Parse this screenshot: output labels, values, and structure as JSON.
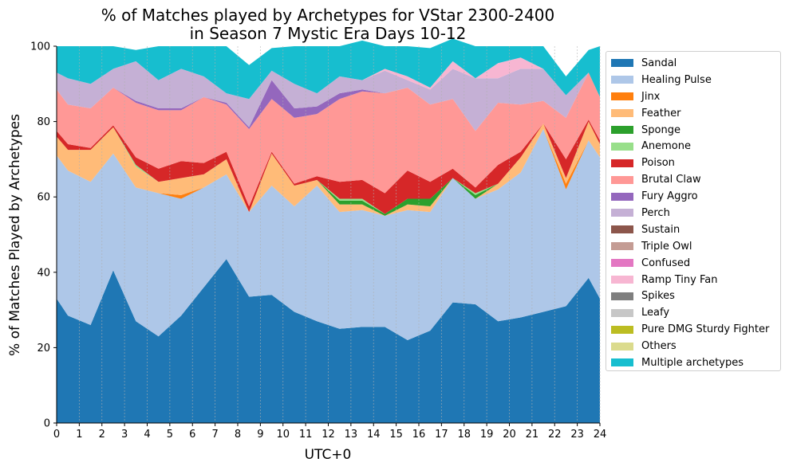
{
  "chart_data": {
    "type": "area",
    "title": "% of Matches played by Archetypes for VStar 2300-2400\nin Season 7 Mystic Era Days 10-12",
    "xlabel": "UTC+0",
    "ylabel": "% of Matches Played by Archetypes",
    "xlim": [
      0,
      24
    ],
    "ylim": [
      0,
      100
    ],
    "x_ticks": [
      "0",
      "1",
      "2",
      "3",
      "4",
      "5",
      "6",
      "7",
      "8",
      "9",
      "10",
      "11",
      "12",
      "13",
      "14",
      "15",
      "16",
      "17",
      "18",
      "19",
      "20",
      "21",
      "22",
      "23",
      "24"
    ],
    "y_ticks": [
      "0",
      "20",
      "40",
      "60",
      "80",
      "100"
    ],
    "grid": "vertical dashed",
    "legend_position": "outside right",
    "x": [
      0,
      0.5,
      1.5,
      2.5,
      3.5,
      4.5,
      5.5,
      6.5,
      7.5,
      8.5,
      9.5,
      10.5,
      11.5,
      12.5,
      13.5,
      14.5,
      15.5,
      16.5,
      17.5,
      18.5,
      19.5,
      20.5,
      21.5,
      22.5,
      23.5,
      24
    ],
    "series": [
      {
        "name": "Sandal",
        "color": "#1f77b4",
        "values": [
          33,
          28.5,
          26,
          40.5,
          27,
          23,
          28.5,
          36,
          43.5,
          33.5,
          34,
          29.5,
          27,
          25,
          25.5,
          25.5,
          22,
          24.5,
          32,
          31.5,
          27,
          28,
          29.5,
          31,
          38.5,
          33
        ]
      },
      {
        "name": "Healing Pulse",
        "color": "#aec7e8",
        "values": [
          38,
          38.5,
          38,
          31,
          35.5,
          38,
          31,
          26.5,
          22.5,
          22.5,
          29,
          28,
          36,
          31,
          31,
          29.5,
          34.5,
          31.5,
          33,
          28,
          35,
          38.5,
          48.5,
          31,
          36.5,
          37.5
        ]
      },
      {
        "name": "Jinx",
        "color": "#ff7f0e",
        "values": [
          0,
          0,
          0,
          0,
          0,
          0,
          1,
          0,
          0,
          0,
          0,
          0,
          0,
          0,
          0,
          0,
          0,
          0,
          0,
          0,
          0,
          0,
          0,
          1.5,
          0,
          0
        ]
      },
      {
        "name": "Feather",
        "color": "#ffbb78",
        "values": [
          5,
          5.5,
          8.5,
          7,
          5.5,
          3,
          4.5,
          3.5,
          4,
          0,
          8.5,
          5.5,
          1.5,
          2,
          1.5,
          0,
          1.5,
          1.5,
          0,
          0,
          1.5,
          4,
          1.5,
          1.5,
          5,
          3.5
        ]
      },
      {
        "name": "Sponge",
        "color": "#2ca02c",
        "values": [
          0,
          0,
          0,
          0,
          0,
          0,
          0,
          0,
          0,
          0,
          0,
          0,
          0,
          1,
          1,
          0.5,
          1.5,
          2,
          0,
          1,
          0,
          0,
          0,
          0,
          0,
          0
        ]
      },
      {
        "name": "Anemone",
        "color": "#98df8a",
        "values": [
          0,
          0,
          0,
          0,
          0.5,
          0,
          0,
          0,
          0,
          0,
          0,
          0,
          0,
          0.5,
          0.5,
          0,
          0,
          0,
          0,
          0.5,
          0,
          0,
          0,
          0,
          0,
          0
        ]
      },
      {
        "name": "Poison",
        "color": "#d62728",
        "values": [
          1.5,
          1.5,
          0.5,
          0.5,
          2,
          3.5,
          4.5,
          3,
          2,
          1.5,
          0.5,
          0.5,
          1,
          4.5,
          5,
          5.5,
          7.5,
          4.5,
          2.5,
          1.5,
          5,
          1.5,
          0,
          5,
          0.5,
          1
        ]
      },
      {
        "name": "Brutal Claw",
        "color": "#ff9896",
        "values": [
          11,
          10.5,
          10.5,
          10,
          14.5,
          15.5,
          13.5,
          17.5,
          12.5,
          20.5,
          14,
          17.5,
          16.5,
          22,
          23.5,
          26.5,
          22,
          20.5,
          18.5,
          15,
          16.5,
          12.5,
          6,
          11,
          12.5,
          11.5
        ]
      },
      {
        "name": "Fury Aggro",
        "color": "#9467bd",
        "values": [
          0,
          0,
          0,
          0,
          0.5,
          0.5,
          0.5,
          0,
          0.5,
          0.5,
          5,
          2.5,
          2,
          1.5,
          0.5,
          0,
          0,
          0,
          0,
          0,
          0,
          0,
          0,
          0,
          0,
          0
        ]
      },
      {
        "name": "Perch",
        "color": "#c5b0d5",
        "values": [
          4.5,
          7,
          6.5,
          5,
          10.5,
          7.5,
          10.5,
          5.5,
          2.5,
          7.5,
          2.5,
          6.5,
          3.5,
          4.5,
          2.5,
          6,
          2,
          4,
          8,
          14,
          6.5,
          9.5,
          8.5,
          6,
          0,
          0
        ]
      },
      {
        "name": "Sustain",
        "color": "#8c564b",
        "values": [
          0,
          0,
          0,
          0,
          0,
          0,
          0,
          0,
          0,
          0,
          0,
          0,
          0,
          0,
          0,
          0,
          0,
          0,
          0,
          0,
          0,
          0,
          0,
          0,
          0,
          0
        ]
      },
      {
        "name": "Triple Owl",
        "color": "#c49c94",
        "values": [
          0,
          0,
          0,
          0,
          0,
          0,
          0,
          0,
          0,
          0,
          0,
          0,
          0,
          0,
          0,
          0,
          0,
          0,
          0,
          0,
          0,
          0,
          0,
          0,
          0,
          0
        ]
      },
      {
        "name": "Confused",
        "color": "#e377c2",
        "values": [
          0,
          0,
          0,
          0,
          0,
          0,
          0,
          0,
          0,
          0,
          0,
          0,
          0,
          0,
          0,
          0,
          0,
          0,
          0,
          0,
          0,
          0,
          0,
          0,
          0,
          0
        ]
      },
      {
        "name": "Ramp Tiny Fan",
        "color": "#f7b6d2",
        "values": [
          0,
          0,
          0,
          0,
          0,
          0,
          0,
          0,
          0,
          0,
          0,
          0,
          0,
          0,
          0,
          0.5,
          1,
          0.5,
          2,
          0,
          4,
          3,
          0,
          0,
          0,
          0
        ]
      },
      {
        "name": "Spikes",
        "color": "#7f7f7f",
        "values": [
          0,
          0,
          0,
          0,
          0,
          0,
          0,
          0,
          0,
          0,
          0,
          0,
          0,
          0,
          0,
          0,
          0,
          0,
          0,
          0,
          0,
          0,
          0,
          0,
          0,
          0
        ]
      },
      {
        "name": "Leafy",
        "color": "#c7c7c7",
        "values": [
          0,
          0,
          0,
          0,
          0,
          0,
          0,
          0,
          0,
          0,
          0,
          0,
          0,
          0,
          0,
          0,
          0,
          0,
          0,
          0,
          0,
          0,
          0,
          0,
          0,
          0
        ]
      },
      {
        "name": "Pure DMG Sturdy Fighter",
        "color": "#bcbd22",
        "values": [
          0,
          0,
          0,
          0,
          0,
          0,
          0,
          0,
          0,
          0,
          0,
          0,
          0,
          0,
          0,
          0,
          0,
          0,
          0,
          0,
          0,
          0,
          0,
          0,
          0,
          0
        ]
      },
      {
        "name": "Others",
        "color": "#dbdb8d",
        "values": [
          0,
          0,
          0,
          0,
          0,
          0,
          0,
          0,
          0,
          0,
          0,
          0,
          0,
          0,
          0,
          0,
          0,
          0,
          0,
          0,
          0,
          0,
          0,
          0,
          0,
          0
        ]
      },
      {
        "name": "Multiple archetypes",
        "color": "#17becf",
        "values": [
          7,
          8.5,
          10,
          6,
          3,
          9,
          6,
          8,
          12.5,
          9,
          6,
          10,
          12.5,
          8,
          10.5,
          6,
          8,
          10.5,
          6,
          8.5,
          4.5,
          3,
          6,
          5,
          6,
          13.5
        ]
      }
    ]
  }
}
